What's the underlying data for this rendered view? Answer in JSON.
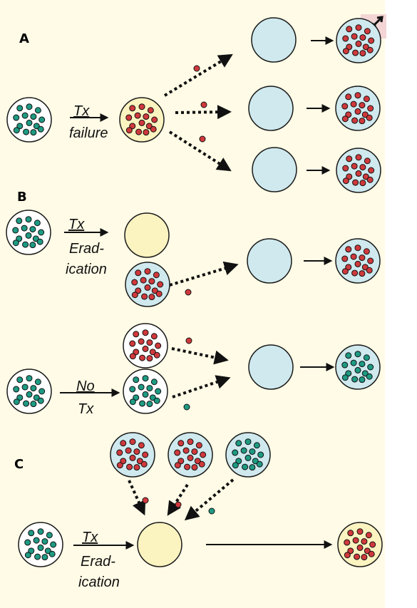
{
  "panels": {
    "a": {
      "label": "A",
      "treatment_label_1": "Tx",
      "treatment_label_2": "failure"
    },
    "b": {
      "label": "B",
      "treatment_label_1": "Tx",
      "treatment_label_2": "Erad-",
      "treatment_label_3": "ication",
      "control_label_1": "No",
      "control_label_2": "Tx"
    },
    "c": {
      "label": "C",
      "treatment_label_1": "Tx",
      "treatment_label_2": "Erad-",
      "treatment_label_3": "ication"
    }
  },
  "colors": {
    "background": "#fffbe6",
    "cell_fill_blue": "#cfe9ee",
    "cell_fill_yellow": "#fbf3c0",
    "dot_red": "#d0393c",
    "dot_teal": "#1e9a83",
    "outline": "#1a1a1a"
  },
  "icons": {
    "corner": "male-symbol-icon"
  }
}
